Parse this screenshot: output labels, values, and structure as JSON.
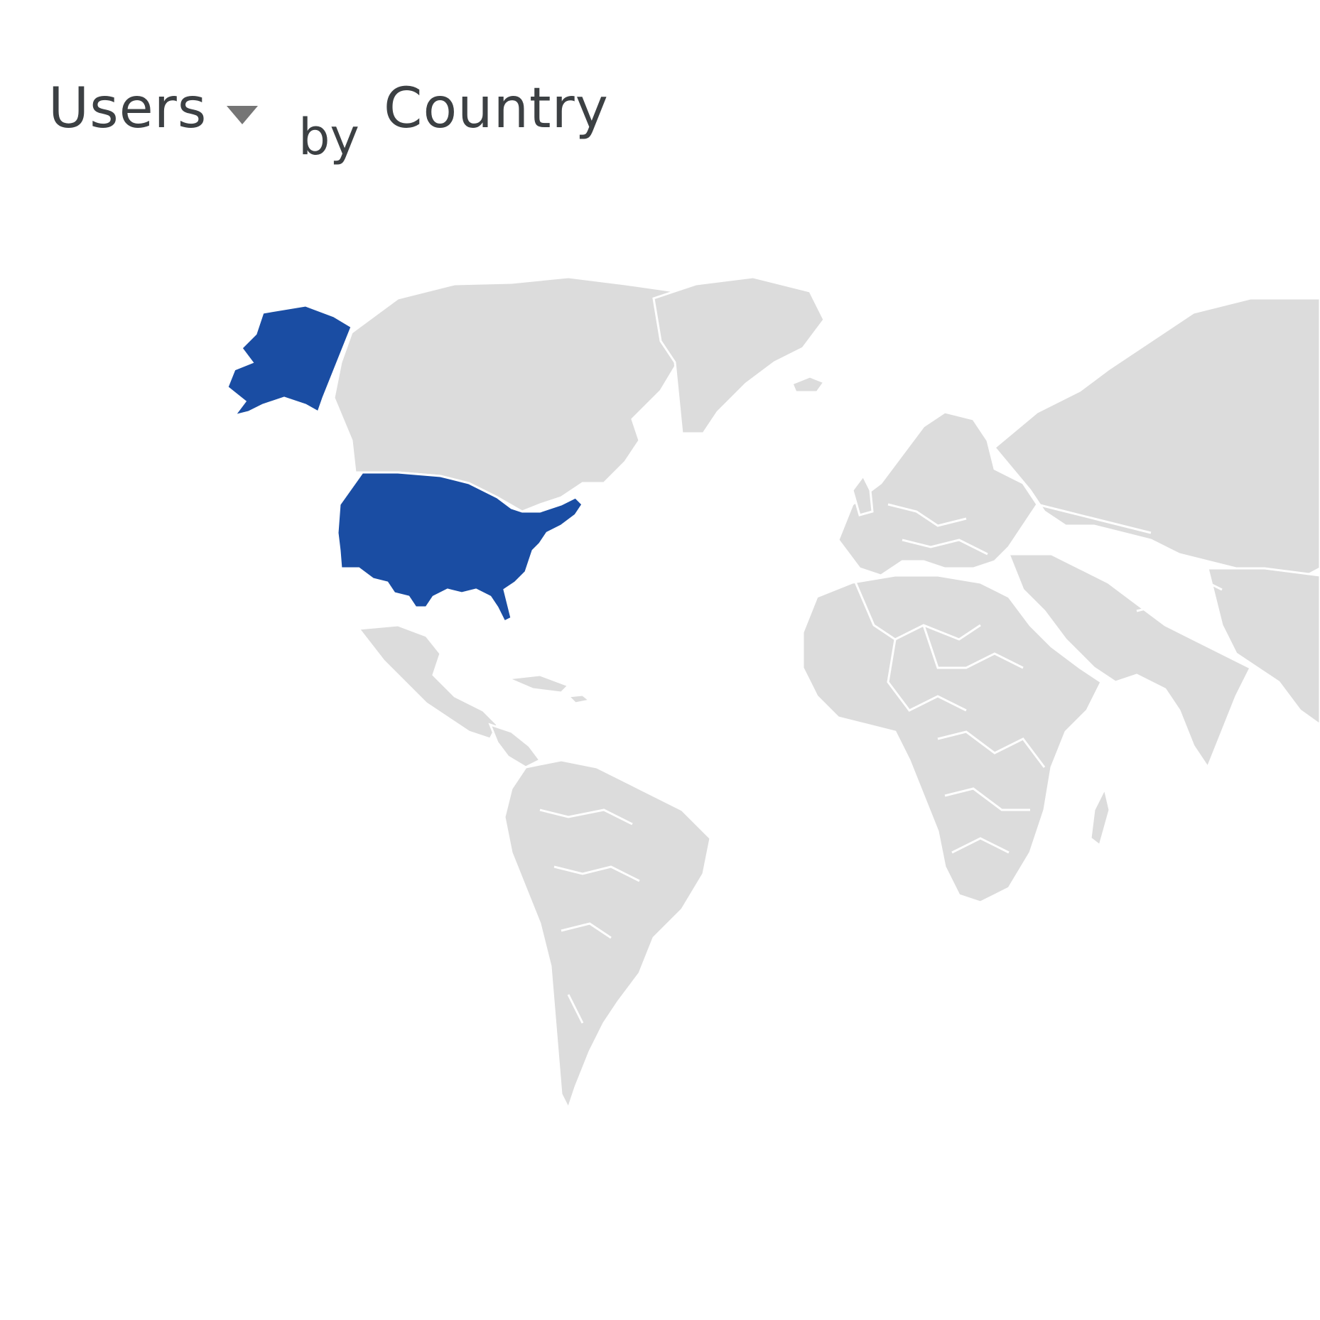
{
  "card": {
    "metric_label": "Users",
    "by_label": "by",
    "dimension_label": "Country",
    "caret_icon": "caret-down-icon"
  },
  "map": {
    "land_color": "#dcdcdc",
    "border_color": "#ffffff",
    "highlight_color": "#1a4da3",
    "highlighted_countries": [
      "United States"
    ]
  }
}
